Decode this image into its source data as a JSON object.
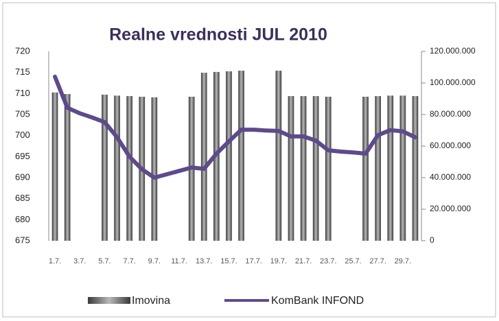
{
  "chart_data": {
    "type": "bar-line",
    "title": "Realne vrednosti JUL 2010",
    "categories": [
      "1.7.",
      null,
      "3.7.",
      null,
      "5.7.",
      null,
      "7.7.",
      null,
      "9.7.",
      null,
      "11.7.",
      null,
      "13.7.",
      null,
      "15.7.",
      null,
      "17.7.",
      null,
      "19.7.",
      null,
      "21.7.",
      null,
      "23.7.",
      null,
      "25.7.",
      null,
      "27.7.",
      null,
      "29.7.",
      null
    ],
    "series": [
      {
        "name": "Imovina",
        "type": "bar",
        "axis": "y2",
        "color": "#707070",
        "values": [
          94000000,
          93000000,
          null,
          null,
          92600000,
          92000000,
          91700000,
          91300000,
          90900000,
          null,
          null,
          91300000,
          106500000,
          107000000,
          107400000,
          107800000,
          null,
          null,
          107800000,
          91700000,
          91700000,
          91700000,
          91300000,
          null,
          null,
          91300000,
          91700000,
          92000000,
          92000000,
          91700000
        ]
      },
      {
        "name": "KomBank INFOND",
        "type": "line",
        "color": "#5e4a8b",
        "values": [
          714,
          706.6,
          705.3,
          704.3,
          703.2,
          699.6,
          695,
          692,
          690,
          690.8,
          691.6,
          692.4,
          692.1,
          695.7,
          698.6,
          701.4,
          701.4,
          701.2,
          701.1,
          699.8,
          699.8,
          698.8,
          696.5,
          696.2,
          696,
          695.7,
          700.1,
          701.3,
          701,
          699.6
        ]
      }
    ],
    "ylim": [
      675,
      720
    ],
    "yticks": [
      675,
      680,
      685,
      690,
      695,
      700,
      705,
      710,
      715,
      720
    ],
    "y2lim": [
      0,
      120000000
    ],
    "y2ticks": [
      0,
      {
        "value": 20000000,
        "label": "20.000.000"
      },
      {
        "value": 40000000,
        "label": "40.000.000"
      },
      {
        "value": 60000000,
        "label": "60.000.000"
      },
      {
        "value": 80000000,
        "label": "80.000.000"
      },
      {
        "value": 100000000,
        "label": "100.000.000"
      },
      {
        "value": 120000000,
        "label": "120.000.000"
      }
    ],
    "legend": "bottom"
  }
}
